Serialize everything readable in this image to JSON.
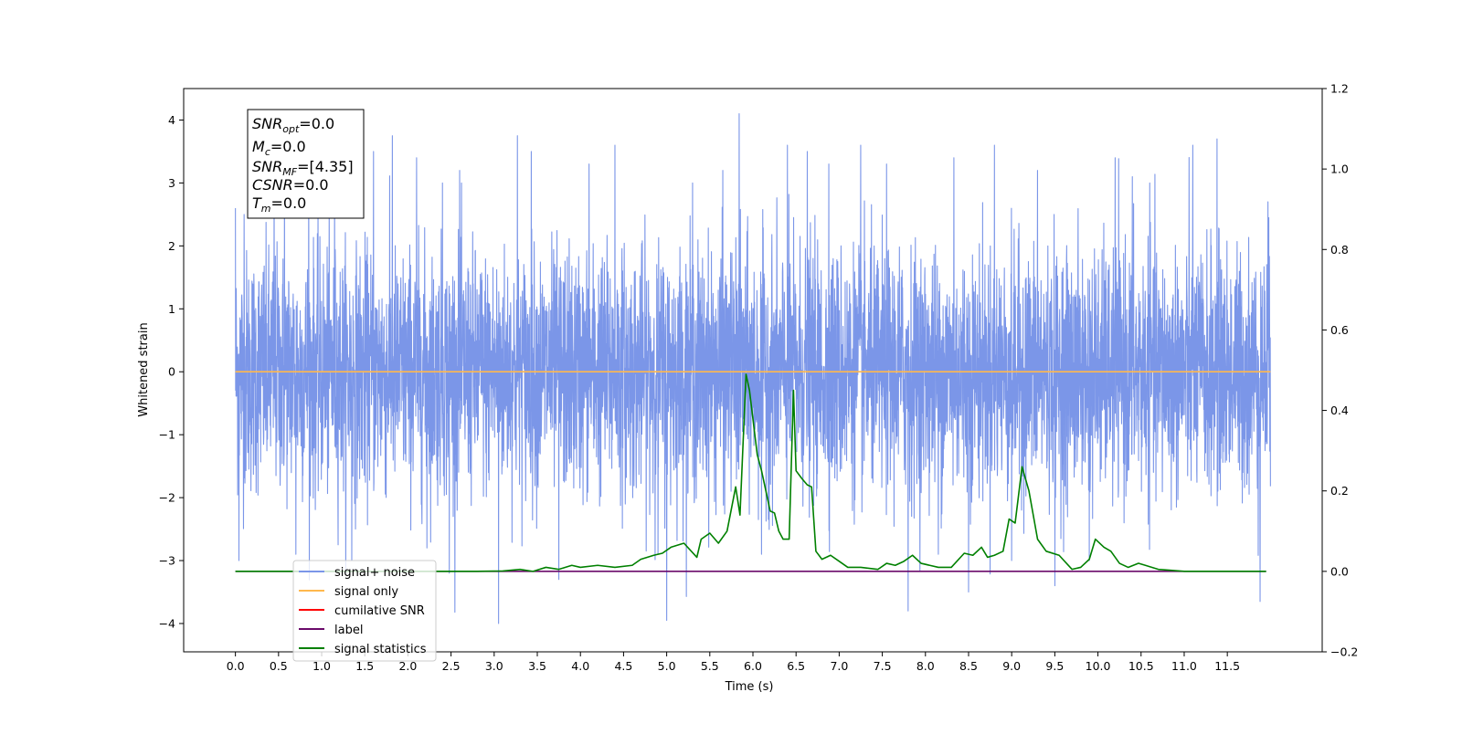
{
  "chart_data": {
    "type": "line",
    "xlabel": "Time (s)",
    "ylabel": "Whitened strain",
    "xlim": [
      -0.6,
      12.6
    ],
    "ylim": [
      -4.45,
      4.5
    ],
    "y2lim": [
      -0.2,
      1.2
    ],
    "grid": false,
    "legend_position": "lower-left",
    "x_ticks": [
      0.0,
      0.5,
      1.0,
      1.5,
      2.0,
      2.5,
      3.0,
      3.5,
      4.0,
      4.5,
      5.0,
      5.5,
      6.0,
      6.5,
      7.0,
      7.5,
      8.0,
      8.5,
      9.0,
      9.5,
      10.0,
      10.5,
      11.0,
      11.5
    ],
    "y_ticks": [
      -4,
      -3,
      -2,
      -1,
      0,
      1,
      2,
      3,
      4
    ],
    "y2_ticks": [
      -0.2,
      0.0,
      0.2,
      0.4,
      0.6,
      0.8,
      1.0,
      1.2
    ],
    "info_box": {
      "snr_opt": {
        "main": "SNR",
        "sub": "opt",
        "rest": "=0.0"
      },
      "mc": {
        "main": "M",
        "sub": "c",
        "rest": "=0.0"
      },
      "snr_mf": {
        "main": "SNR",
        "sub": "MF",
        "rest": "=[4.35]"
      },
      "csnr": {
        "main": "CSNR",
        "rest": "=0.0"
      },
      "tm": {
        "main": "T",
        "sub": "m",
        "rest": "=0.0"
      }
    },
    "series": [
      {
        "name": "signal+ noise",
        "color": "#7b96e8",
        "axis": "left",
        "kind": "noise",
        "x_range": [
          0.0,
          12.0
        ],
        "spikes": [
          [
            0.0,
            2.6
          ],
          [
            0.04,
            -3.0
          ],
          [
            0.1,
            2.5
          ],
          [
            0.45,
            3.2
          ],
          [
            0.57,
            3.4
          ],
          [
            0.7,
            -2.9
          ],
          [
            0.85,
            3.0
          ],
          [
            1.15,
            3.3
          ],
          [
            1.35,
            -3.0
          ],
          [
            1.6,
            3.5
          ],
          [
            1.82,
            3.75
          ],
          [
            2.1,
            3.4
          ],
          [
            2.22,
            -2.8
          ],
          [
            2.4,
            3.0
          ],
          [
            2.48,
            -3.2
          ],
          [
            2.6,
            3.2
          ],
          [
            3.05,
            -4.0
          ],
          [
            3.27,
            3.75
          ],
          [
            3.43,
            3.5
          ],
          [
            3.75,
            -3.3
          ],
          [
            4.1,
            3.3
          ],
          [
            4.4,
            3.6
          ],
          [
            4.9,
            -2.9
          ],
          [
            5.0,
            -3.95
          ],
          [
            5.3,
            3.0
          ],
          [
            5.65,
            3.2
          ],
          [
            5.84,
            4.1
          ],
          [
            6.1,
            -2.9
          ],
          [
            6.4,
            3.6
          ],
          [
            6.63,
            3.5
          ],
          [
            6.88,
            3.3
          ],
          [
            7.25,
            3.6
          ],
          [
            7.55,
            3.3
          ],
          [
            7.8,
            -3.8
          ],
          [
            8.15,
            -2.9
          ],
          [
            8.33,
            3.4
          ],
          [
            8.5,
            -3.5
          ],
          [
            8.8,
            3.6
          ],
          [
            9.0,
            -3.0
          ],
          [
            9.3,
            3.2
          ],
          [
            9.5,
            -3.4
          ],
          [
            9.9,
            -3.0
          ],
          [
            10.2,
            3.4
          ],
          [
            10.4,
            3.1
          ],
          [
            10.6,
            3.0
          ],
          [
            11.1,
            3.6
          ],
          [
            11.38,
            3.7
          ],
          [
            11.88,
            -3.65
          ],
          [
            11.97,
            2.7
          ]
        ]
      },
      {
        "name": "signal only",
        "color": "#ffb84d",
        "axis": "left",
        "x": [
          0.0,
          12.0
        ],
        "y": [
          0.0,
          0.0
        ]
      },
      {
        "name": "cumilative SNR",
        "color": "#ff0000",
        "axis": "left",
        "x": [],
        "y": []
      },
      {
        "name": "label",
        "color": "#6a0a6a",
        "axis": "right",
        "x": [
          0.0,
          11.95
        ],
        "y": [
          0.0,
          0.0
        ]
      },
      {
        "name": "signal statistics",
        "color": "#008000",
        "axis": "right",
        "x": [
          0.0,
          2.0,
          2.8,
          3.1,
          3.3,
          3.45,
          3.6,
          3.75,
          3.9,
          4.0,
          4.2,
          4.4,
          4.6,
          4.7,
          4.85,
          4.95,
          5.05,
          5.2,
          5.35,
          5.4,
          5.5,
          5.6,
          5.7,
          5.8,
          5.85,
          5.92,
          5.96,
          6.05,
          6.1,
          6.2,
          6.25,
          6.3,
          6.35,
          6.42,
          6.47,
          6.5,
          6.57,
          6.63,
          6.68,
          6.73,
          6.8,
          6.9,
          7.0,
          7.1,
          7.25,
          7.45,
          7.55,
          7.65,
          7.75,
          7.85,
          7.95,
          8.05,
          8.15,
          8.3,
          8.45,
          8.55,
          8.65,
          8.72,
          8.8,
          8.9,
          8.97,
          9.04,
          9.12,
          9.2,
          9.3,
          9.4,
          9.55,
          9.7,
          9.8,
          9.9,
          9.97,
          10.07,
          10.15,
          10.25,
          10.35,
          10.47,
          10.55,
          10.7,
          11.0,
          11.95
        ],
        "y": [
          0.0,
          0.0,
          0.0,
          0.001,
          0.005,
          0.0,
          0.01,
          0.005,
          0.015,
          0.01,
          0.015,
          0.01,
          0.015,
          0.03,
          0.04,
          0.045,
          0.06,
          0.07,
          0.035,
          0.08,
          0.095,
          0.07,
          0.1,
          0.21,
          0.14,
          0.49,
          0.45,
          0.29,
          0.25,
          0.15,
          0.145,
          0.1,
          0.08,
          0.08,
          0.45,
          0.25,
          0.23,
          0.215,
          0.21,
          0.05,
          0.03,
          0.04,
          0.025,
          0.01,
          0.01,
          0.005,
          0.02,
          0.015,
          0.025,
          0.04,
          0.02,
          0.015,
          0.01,
          0.01,
          0.045,
          0.04,
          0.06,
          0.035,
          0.04,
          0.05,
          0.13,
          0.12,
          0.26,
          0.2,
          0.08,
          0.05,
          0.04,
          0.005,
          0.01,
          0.03,
          0.08,
          0.06,
          0.05,
          0.02,
          0.01,
          0.02,
          0.015,
          0.005,
          0.0,
          0.0
        ]
      }
    ]
  },
  "legend": {
    "signal_noise": "signal+ noise",
    "signal_only": "signal only",
    "cumulative_snr": "cumilative SNR",
    "label": "label",
    "signal_statistics": "signal statistics"
  }
}
